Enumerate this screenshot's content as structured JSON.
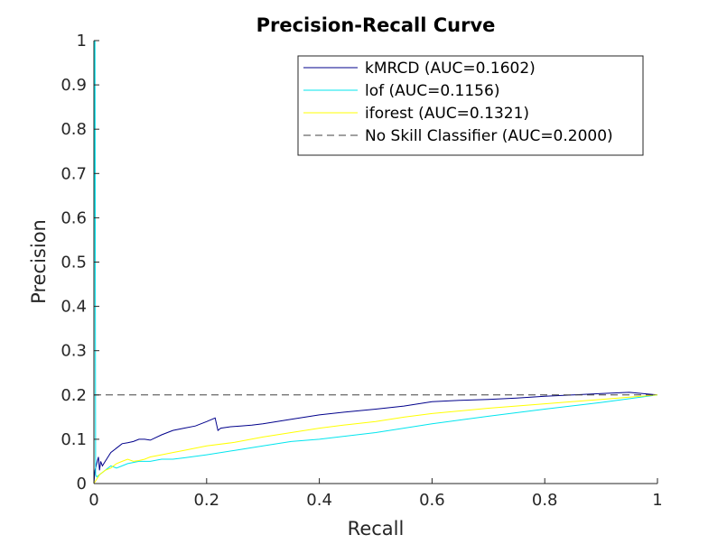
{
  "chart_data": {
    "type": "line",
    "title": "Precision-Recall Curve",
    "xlabel": "Recall",
    "ylabel": "Precision",
    "xlim": [
      0,
      1
    ],
    "ylim": [
      0,
      1
    ],
    "xticks": [
      "0",
      "0.2",
      "0.4",
      "0.6",
      "0.8",
      "1"
    ],
    "yticks": [
      "0",
      "0.1",
      "0.2",
      "0.3",
      "0.4",
      "0.5",
      "0.6",
      "0.7",
      "0.8",
      "0.9",
      "1"
    ],
    "grid": false,
    "legend_position": "top-right",
    "series": [
      {
        "name": "kMRCD (AUC=0.1602)",
        "color": "#00008b",
        "dash": "solid",
        "x": [
          0,
          0.002,
          0.004,
          0.006,
          0.008,
          0.01,
          0.012,
          0.015,
          0.02,
          0.025,
          0.03,
          0.04,
          0.05,
          0.06,
          0.07,
          0.08,
          0.09,
          0.1,
          0.12,
          0.14,
          0.16,
          0.18,
          0.2,
          0.215,
          0.22,
          0.225,
          0.24,
          0.26,
          0.28,
          0.3,
          0.35,
          0.4,
          0.45,
          0.5,
          0.55,
          0.6,
          0.65,
          0.7,
          0.75,
          0.8,
          0.85,
          0.9,
          0.95,
          1.0
        ],
        "y": [
          0,
          0.03,
          0.04,
          0.05,
          0.06,
          0.03,
          0.05,
          0.04,
          0.05,
          0.06,
          0.07,
          0.08,
          0.09,
          0.092,
          0.095,
          0.1,
          0.1,
          0.098,
          0.11,
          0.12,
          0.125,
          0.13,
          0.14,
          0.148,
          0.12,
          0.125,
          0.128,
          0.13,
          0.132,
          0.135,
          0.145,
          0.155,
          0.162,
          0.168,
          0.175,
          0.185,
          0.188,
          0.19,
          0.193,
          0.197,
          0.2,
          0.203,
          0.206,
          0.2
        ]
      },
      {
        "name": "lof (AUC=0.1156)",
        "color": "#00e5ee",
        "dash": "solid",
        "x": [
          0,
          0.001,
          0.002,
          0.003,
          0.005,
          0.01,
          0.02,
          0.03,
          0.04,
          0.05,
          0.06,
          0.08,
          0.1,
          0.12,
          0.14,
          0.16,
          0.2,
          0.25,
          0.3,
          0.35,
          0.4,
          0.5,
          0.6,
          0.7,
          0.8,
          0.9,
          1.0
        ],
        "y": [
          0,
          1.0,
          1.0,
          0.02,
          0.015,
          0.02,
          0.03,
          0.04,
          0.035,
          0.04,
          0.045,
          0.05,
          0.05,
          0.055,
          0.055,
          0.058,
          0.065,
          0.075,
          0.085,
          0.095,
          0.1,
          0.115,
          0.135,
          0.152,
          0.168,
          0.183,
          0.2
        ]
      },
      {
        "name": "iforest (AUC=0.1321)",
        "color": "#ffff00",
        "dash": "solid",
        "x": [
          0,
          0.01,
          0.02,
          0.03,
          0.04,
          0.05,
          0.06,
          0.07,
          0.08,
          0.09,
          0.1,
          0.12,
          0.14,
          0.16,
          0.18,
          0.2,
          0.25,
          0.3,
          0.35,
          0.4,
          0.45,
          0.5,
          0.55,
          0.6,
          0.7,
          0.8,
          0.9,
          1.0
        ],
        "y": [
          0,
          0.02,
          0.03,
          0.035,
          0.045,
          0.05,
          0.055,
          0.05,
          0.052,
          0.055,
          0.06,
          0.065,
          0.07,
          0.075,
          0.08,
          0.085,
          0.093,
          0.105,
          0.115,
          0.125,
          0.133,
          0.14,
          0.15,
          0.158,
          0.17,
          0.18,
          0.19,
          0.2
        ]
      },
      {
        "name": "No Skill Classifier (AUC=0.2000)",
        "color": "#404040",
        "dash": "dashed",
        "x": [
          0,
          1
        ],
        "y": [
          0.2,
          0.2
        ]
      }
    ]
  }
}
